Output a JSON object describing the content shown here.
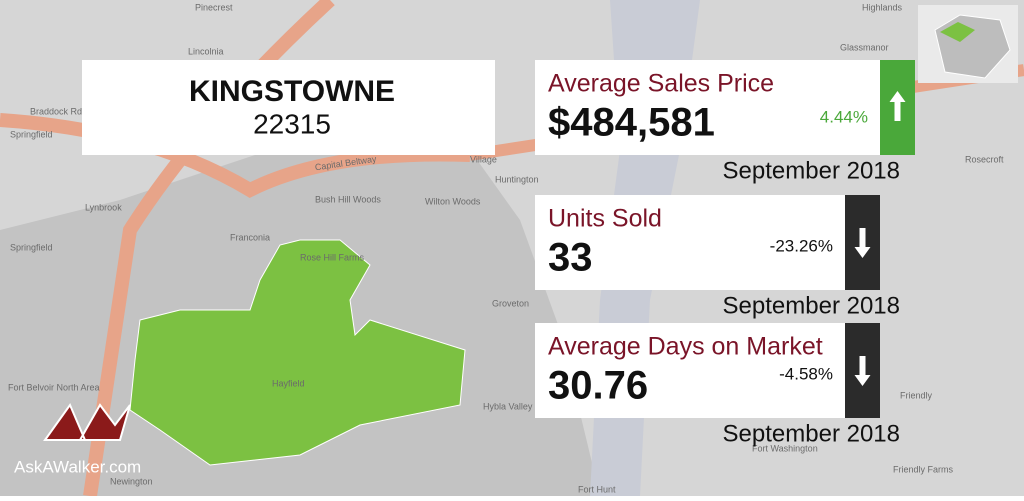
{
  "header": {
    "title": "KINGSTOWNE",
    "zip": "22315"
  },
  "stats": [
    {
      "label": "Average Sales Price",
      "value": "$484,581",
      "change": "4.44%",
      "trend": "up",
      "color": "#4aa83a",
      "period": "September 2018"
    },
    {
      "label": "Units Sold",
      "value": "33",
      "change": "-23.26%",
      "trend": "down",
      "color": "#2b2b2b",
      "period": "September 2018"
    },
    {
      "label": "Average Days on Market",
      "value": "30.76",
      "change": "-4.58%",
      "trend": "down",
      "color": "#2b2b2b",
      "period": "September 2018"
    }
  ],
  "logo": "AskAWalker.com",
  "map_labels": [
    "Pinecrest",
    "Lincolnia",
    "Braddock Rd",
    "Springfield",
    "Lynbrook",
    "Bush Hill Woods",
    "Wilton Woods",
    "Franconia",
    "Rose Hill Farms",
    "Huntington",
    "Groveton",
    "Hybla Valley",
    "Hayfield",
    "Fort Washington",
    "Friendly",
    "Friendly Farms",
    "Highlands",
    "Glassmanor",
    "Village",
    "Capital Beltway",
    "Fort Hunt",
    "Newington",
    "Rosecroft",
    "Springfield",
    "Fort Belvoir North Area"
  ]
}
